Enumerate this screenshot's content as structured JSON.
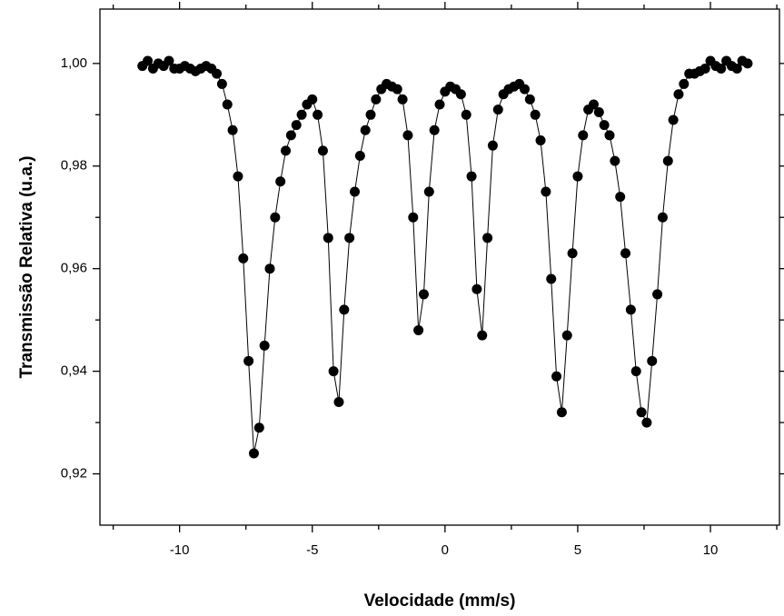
{
  "chart_data": {
    "type": "scatter",
    "connected": true,
    "color": "#000000",
    "xlabel": "Velocidade (mm/s)",
    "ylabel": "Transmissão Relativa (u.a.)",
    "x": [
      -11.4,
      -11.2,
      -11,
      -10.8,
      -10.6,
      -10.4,
      -10.2,
      -10,
      -9.8,
      -9.6,
      -9.4,
      -9.2,
      -9,
      -8.8,
      -8.6,
      -8.4,
      -8.2,
      -8,
      -7.8,
      -7.6,
      -7.4,
      -7.2,
      -7,
      -6.8,
      -6.6,
      -6.4,
      -6.2,
      -6,
      -5.8,
      -5.6,
      -5.4,
      -5.2,
      -5,
      -4.8,
      -4.6,
      -4.4,
      -4.2,
      -4,
      -3.8,
      -3.6,
      -3.4,
      -3.2,
      -3,
      -2.8,
      -2.6,
      -2.4,
      -2.2,
      -2,
      -1.8,
      -1.6,
      -1.4,
      -1.2,
      -1,
      -0.8,
      -0.6,
      -0.4,
      -0.2,
      0,
      0.2,
      0.4,
      0.6,
      0.8,
      1,
      1.2,
      1.4,
      1.6,
      1.8,
      2,
      2.2,
      2.4,
      2.6,
      2.8,
      3,
      3.2,
      3.4,
      3.6,
      3.8,
      4,
      4.2,
      4.4,
      4.6,
      4.8,
      5,
      5.2,
      5.4,
      5.6,
      5.8,
      6,
      6.2,
      6.4,
      6.6,
      6.8,
      7,
      7.2,
      7.4,
      7.6,
      7.8,
      8,
      8.2,
      8.4,
      8.6,
      8.8,
      9,
      9.2,
      9.4,
      9.6,
      9.8,
      10,
      10.2,
      10.4,
      10.6,
      10.8,
      11,
      11.2,
      11.4
    ],
    "values": [
      0.9995,
      1.0005,
      0.999,
      1,
      0.9995,
      1.0005,
      0.999,
      0.999,
      0.9995,
      0.999,
      0.9985,
      0.999,
      0.9995,
      0.999,
      0.998,
      0.996,
      0.992,
      0.987,
      0.978,
      0.962,
      0.942,
      0.924,
      0.929,
      0.945,
      0.96,
      0.97,
      0.977,
      0.983,
      0.986,
      0.988,
      0.99,
      0.992,
      0.993,
      0.99,
      0.983,
      0.966,
      0.94,
      0.934,
      0.952,
      0.966,
      0.975,
      0.982,
      0.987,
      0.99,
      0.993,
      0.995,
      0.996,
      0.9955,
      0.995,
      0.993,
      0.986,
      0.97,
      0.948,
      0.955,
      0.975,
      0.987,
      0.992,
      0.9945,
      0.9955,
      0.995,
      0.994,
      0.99,
      0.978,
      0.956,
      0.947,
      0.966,
      0.984,
      0.991,
      0.994,
      0.995,
      0.9955,
      0.996,
      0.995,
      0.993,
      0.99,
      0.985,
      0.975,
      0.958,
      0.939,
      0.932,
      0.947,
      0.963,
      0.978,
      0.986,
      0.991,
      0.992,
      0.9905,
      0.988,
      0.986,
      0.981,
      0.974,
      0.963,
      0.952,
      0.94,
      0.932,
      0.93,
      0.942,
      0.955,
      0.97,
      0.981,
      0.989,
      0.994,
      0.996,
      0.998,
      0.998,
      0.9985,
      0.999,
      1.0005,
      0.9995,
      0.999,
      1.0005,
      0.9995,
      0.999,
      1.0005,
      1
    ],
    "xlim": [
      -13,
      12.6
    ],
    "ylim": [
      0.91,
      1.0106
    ],
    "xticks": [
      -10,
      -5,
      0,
      5,
      10
    ],
    "xticks_minor": [
      -12.5,
      -7.5,
      -2.5,
      2.5,
      7.5,
      12.5
    ],
    "yticks": [
      {
        "value": 0.92,
        "label": "0,92"
      },
      {
        "value": 0.94,
        "label": "0,94"
      },
      {
        "value": 0.96,
        "label": "0,96"
      },
      {
        "value": 0.98,
        "label": "0,98"
      },
      {
        "value": 1.0,
        "label": "1,00"
      }
    ],
    "yticks_minor": [
      0.93,
      0.95,
      0.97,
      0.99
    ]
  }
}
